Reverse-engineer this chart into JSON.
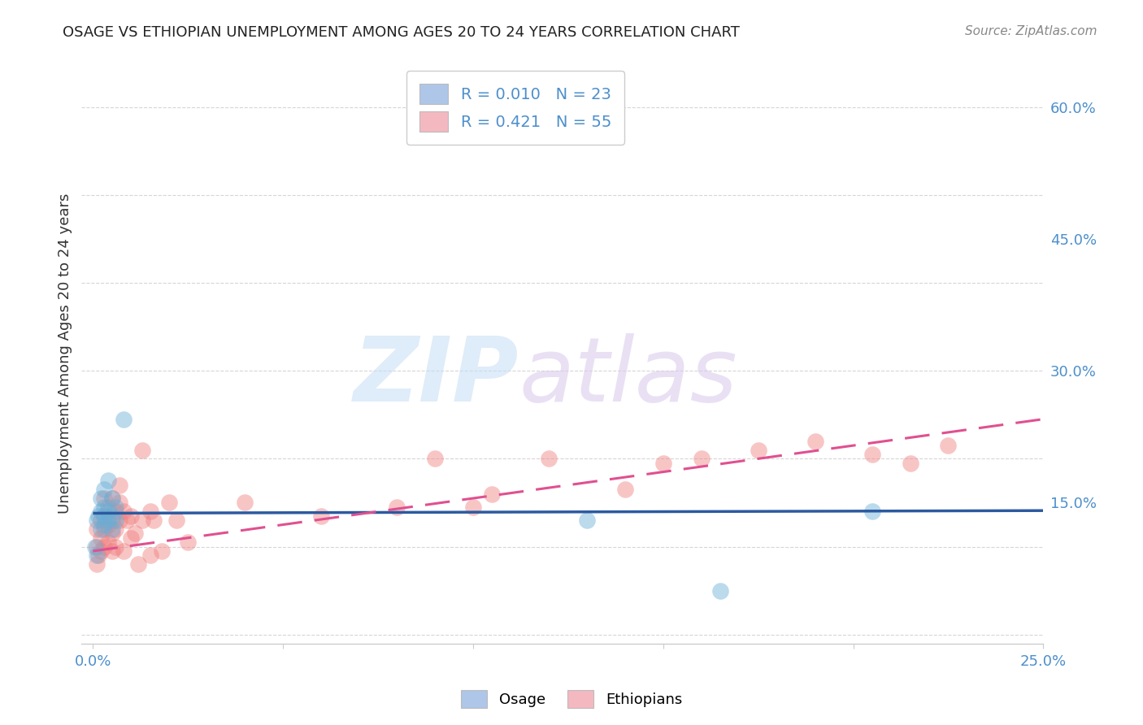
{
  "title": "OSAGE VS ETHIOPIAN UNEMPLOYMENT AMONG AGES 20 TO 24 YEARS CORRELATION CHART",
  "source": "Source: ZipAtlas.com",
  "ylabel": "Unemployment Among Ages 20 to 24 years",
  "xlim": [
    -0.003,
    0.25
  ],
  "ylim": [
    -0.01,
    0.65
  ],
  "yticks_right": [
    0.15,
    0.3,
    0.45,
    0.6
  ],
  "ytick_labels_right": [
    "15.0%",
    "30.0%",
    "45.0%",
    "60.0%"
  ],
  "xticks": [
    0.0,
    0.05,
    0.1,
    0.15,
    0.2,
    0.25
  ],
  "xtick_labels": [
    "0.0%",
    "",
    "",
    "",
    "",
    "25.0%"
  ],
  "legend_colors": [
    "#aec6e8",
    "#f4b8c1"
  ],
  "osage_color": "#6aaed6",
  "ethiopian_color": "#f08080",
  "osage_line_color": "#2c5aa0",
  "ethiopian_line_color": "#e05090",
  "osage_R": 0.01,
  "ethiopian_R": 0.421,
  "osage_N": 23,
  "ethiopian_N": 55,
  "osage_line_x": [
    0.0,
    0.25
  ],
  "osage_line_y": [
    0.138,
    0.141
  ],
  "ethiopian_line_x": [
    0.0,
    0.25
  ],
  "ethiopian_line_y": [
    0.095,
    0.245
  ],
  "osage_x": [
    0.0005,
    0.001,
    0.001,
    0.0015,
    0.002,
    0.002,
    0.002,
    0.003,
    0.003,
    0.003,
    0.003,
    0.004,
    0.004,
    0.004,
    0.005,
    0.005,
    0.005,
    0.006,
    0.006,
    0.008,
    0.13,
    0.165,
    0.205
  ],
  "osage_y": [
    0.1,
    0.09,
    0.13,
    0.135,
    0.12,
    0.14,
    0.155,
    0.125,
    0.135,
    0.145,
    0.165,
    0.13,
    0.14,
    0.175,
    0.12,
    0.135,
    0.155,
    0.13,
    0.145,
    0.245,
    0.13,
    0.05,
    0.14
  ],
  "ethiopian_x": [
    0.001,
    0.001,
    0.001,
    0.0015,
    0.002,
    0.002,
    0.002,
    0.003,
    0.003,
    0.003,
    0.003,
    0.004,
    0.004,
    0.004,
    0.005,
    0.005,
    0.005,
    0.005,
    0.006,
    0.006,
    0.006,
    0.007,
    0.007,
    0.007,
    0.008,
    0.008,
    0.009,
    0.01,
    0.01,
    0.011,
    0.012,
    0.013,
    0.013,
    0.015,
    0.015,
    0.016,
    0.018,
    0.02,
    0.022,
    0.025,
    0.04,
    0.06,
    0.08,
    0.09,
    0.1,
    0.105,
    0.12,
    0.14,
    0.15,
    0.16,
    0.175,
    0.19,
    0.205,
    0.215,
    0.225
  ],
  "ethiopian_y": [
    0.08,
    0.1,
    0.12,
    0.09,
    0.095,
    0.11,
    0.13,
    0.1,
    0.12,
    0.135,
    0.155,
    0.105,
    0.125,
    0.145,
    0.095,
    0.115,
    0.13,
    0.155,
    0.1,
    0.12,
    0.14,
    0.13,
    0.15,
    0.17,
    0.095,
    0.14,
    0.13,
    0.11,
    0.135,
    0.115,
    0.08,
    0.13,
    0.21,
    0.09,
    0.14,
    0.13,
    0.095,
    0.15,
    0.13,
    0.105,
    0.15,
    0.135,
    0.145,
    0.2,
    0.145,
    0.16,
    0.2,
    0.165,
    0.195,
    0.2,
    0.21,
    0.22,
    0.205,
    0.195,
    0.215
  ]
}
